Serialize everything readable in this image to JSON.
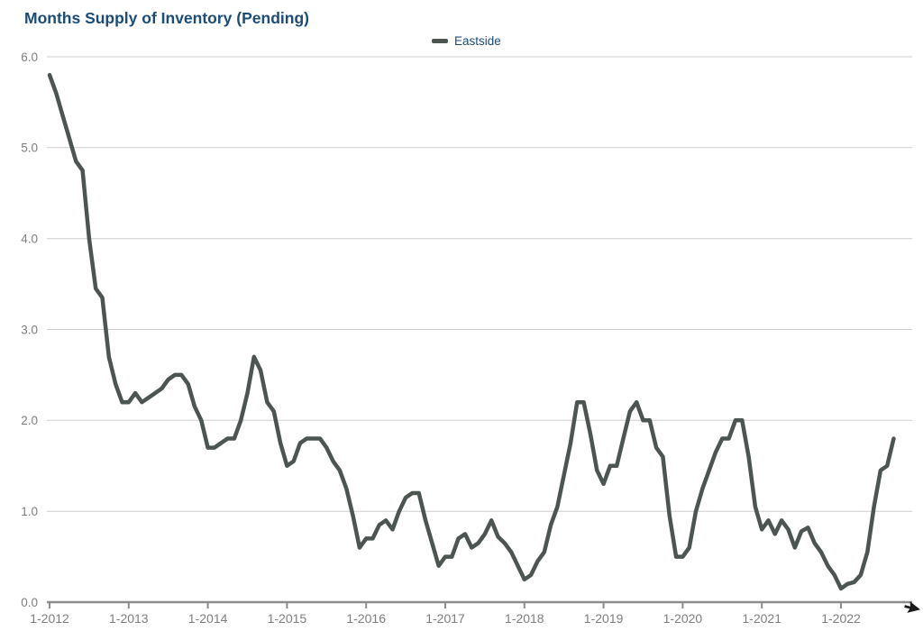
{
  "title": "Months Supply of Inventory (Pending)",
  "legend": {
    "label": "Eastside"
  },
  "colors": {
    "title_text": "#1c4c78",
    "legend_text": "#1c4c78",
    "series_line": "#4d5551",
    "gridline": "#cdcdcd",
    "axis_line": "#8c8c8c",
    "tick_label": "#7e7e7e",
    "cursor": "#1b1b1b"
  },
  "chart_data": {
    "type": "line",
    "title": "Months Supply of Inventory (Pending)",
    "xlabel": "",
    "ylabel": "",
    "ylim": [
      0,
      6
    ],
    "grid": "horizontal",
    "legend_position": "top-center",
    "x_frequency": "monthly",
    "x_start": "1-2012",
    "x_end": "9-2022",
    "x_tick_labels": [
      "1-2012",
      "1-2013",
      "1-2014",
      "1-2015",
      "1-2016",
      "1-2017",
      "1-2018",
      "1-2019",
      "1-2020",
      "1-2021",
      "1-2022"
    ],
    "y_tick_labels": [
      "0.0",
      "1.0",
      "2.0",
      "3.0",
      "4.0",
      "5.0",
      "6.0"
    ],
    "series": [
      {
        "name": "Eastside",
        "values": [
          5.8,
          5.6,
          5.35,
          5.1,
          4.85,
          4.75,
          4.0,
          3.45,
          3.35,
          2.7,
          2.4,
          2.2,
          2.2,
          2.3,
          2.2,
          2.25,
          2.3,
          2.35,
          2.45,
          2.5,
          2.5,
          2.4,
          2.15,
          2.0,
          1.7,
          1.7,
          1.75,
          1.8,
          1.8,
          2.0,
          2.3,
          2.7,
          2.55,
          2.2,
          2.1,
          1.75,
          1.5,
          1.55,
          1.75,
          1.8,
          1.8,
          1.8,
          1.7,
          1.55,
          1.45,
          1.25,
          0.95,
          0.6,
          0.7,
          0.7,
          0.85,
          0.9,
          0.8,
          1.0,
          1.15,
          1.2,
          1.2,
          0.9,
          0.65,
          0.4,
          0.5,
          0.5,
          0.7,
          0.75,
          0.6,
          0.65,
          0.75,
          0.9,
          0.72,
          0.65,
          0.55,
          0.4,
          0.25,
          0.3,
          0.45,
          0.55,
          0.85,
          1.05,
          1.4,
          1.75,
          2.2,
          2.2,
          1.85,
          1.45,
          1.3,
          1.5,
          1.5,
          1.8,
          2.1,
          2.2,
          2.0,
          2.0,
          1.7,
          1.6,
          0.95,
          0.5,
          0.5,
          0.6,
          1.0,
          1.25,
          1.45,
          1.65,
          1.8,
          1.8,
          2.0,
          2.0,
          1.6,
          1.05,
          0.8,
          0.9,
          0.75,
          0.9,
          0.8,
          0.6,
          0.78,
          0.82,
          0.65,
          0.55,
          0.4,
          0.3,
          0.15,
          0.2,
          0.22,
          0.3,
          0.55,
          1.05,
          1.45,
          1.5,
          1.8
        ]
      }
    ]
  }
}
